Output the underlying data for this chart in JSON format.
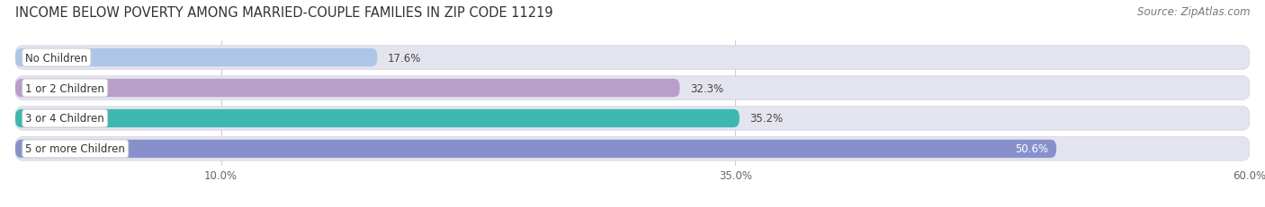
{
  "title": "INCOME BELOW POVERTY AMONG MARRIED-COUPLE FAMILIES IN ZIP CODE 11219",
  "source": "Source: ZipAtlas.com",
  "categories": [
    "No Children",
    "1 or 2 Children",
    "3 or 4 Children",
    "5 or more Children"
  ],
  "values": [
    17.6,
    32.3,
    35.2,
    50.6
  ],
  "bar_colors": [
    "#adc6e8",
    "#b89ec8",
    "#3db8b0",
    "#8890cc"
  ],
  "bar_bg_color": "#e4e4ef",
  "xlim": [
    0,
    60.0
  ],
  "xticks": [
    10.0,
    35.0,
    60.0
  ],
  "xtick_labels": [
    "10.0%",
    "35.0%",
    "60.0%"
  ],
  "title_fontsize": 10.5,
  "source_fontsize": 8.5,
  "tick_fontsize": 8.5,
  "bar_label_fontsize": 8.5,
  "category_fontsize": 8.5,
  "figsize": [
    14.06,
    2.32
  ],
  "dpi": 100
}
